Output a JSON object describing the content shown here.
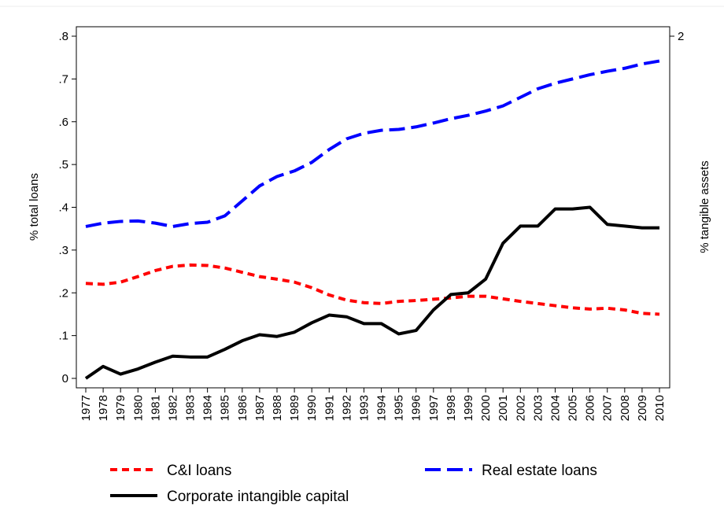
{
  "chart_data": {
    "type": "line",
    "y_label": "% total loans",
    "y2_label": "% tangible assets",
    "categories": [
      "1977",
      "1978",
      "1979",
      "1980",
      "1981",
      "1982",
      "1983",
      "1984",
      "1985",
      "1986",
      "1987",
      "1988",
      "1989",
      "1990",
      "1991",
      "1992",
      "1993",
      "1994",
      "1995",
      "1996",
      "1997",
      "1998",
      "1999",
      "2000",
      "2001",
      "2002",
      "2003",
      "2004",
      "2005",
      "2006",
      "2007",
      "2008",
      "2009",
      "2010"
    ],
    "ylim": [
      0,
      0.8
    ],
    "yticks": [
      0,
      {
        "value": 0.1,
        "label": ".1"
      },
      {
        "value": 0.2,
        "label": ".2"
      },
      {
        "value": 0.3,
        "label": ".3"
      },
      {
        "value": 0.4,
        "label": ".4"
      },
      {
        "value": 0.5,
        "label": ".5"
      },
      {
        "value": 0.6,
        "label": ".6"
      },
      {
        "value": 0.7,
        "label": ".7"
      },
      {
        "value": 0.8,
        "label": ".8"
      }
    ],
    "y2lim": [
      0,
      2
    ],
    "y2ticks": [
      2
    ],
    "series": [
      {
        "name": "C&I loans",
        "color": "#ff0000",
        "line_style": "short-dash",
        "values": [
          0.222,
          0.22,
          0.225,
          0.238,
          0.252,
          0.262,
          0.265,
          0.264,
          0.258,
          0.248,
          0.238,
          0.232,
          0.225,
          0.212,
          0.195,
          0.183,
          0.177,
          0.175,
          0.18,
          0.182,
          0.185,
          0.188,
          0.192,
          0.192,
          0.186,
          0.18,
          0.175,
          0.17,
          0.165,
          0.162,
          0.164,
          0.16,
          0.152,
          0.15
        ]
      },
      {
        "name": "Real estate loans",
        "color": "#0000ff",
        "line_style": "long-dash",
        "values": [
          0.355,
          0.363,
          0.367,
          0.368,
          0.363,
          0.355,
          0.362,
          0.365,
          0.38,
          0.415,
          0.45,
          0.472,
          0.485,
          0.505,
          0.535,
          0.56,
          0.573,
          0.58,
          0.582,
          0.588,
          0.597,
          0.607,
          0.615,
          0.625,
          0.637,
          0.657,
          0.677,
          0.69,
          0.7,
          0.71,
          0.718,
          0.725,
          0.735,
          0.742
        ]
      },
      {
        "name": "Corporate intangible capital",
        "color": "#000000",
        "line_style": "solid",
        "axis": "y2",
        "values": [
          0,
          0.07,
          0.025,
          0.055,
          0.095,
          0.13,
          0.125,
          0.125,
          0.17,
          0.22,
          0.255,
          0.245,
          0.27,
          0.325,
          0.37,
          0.36,
          0.32,
          0.32,
          0.26,
          0.28,
          0.4,
          0.49,
          0.5,
          0.58,
          0.79,
          0.89,
          0.89,
          0.99,
          0.99,
          1.0,
          0.9,
          0.89,
          0.88,
          0.88
        ]
      }
    ]
  }
}
